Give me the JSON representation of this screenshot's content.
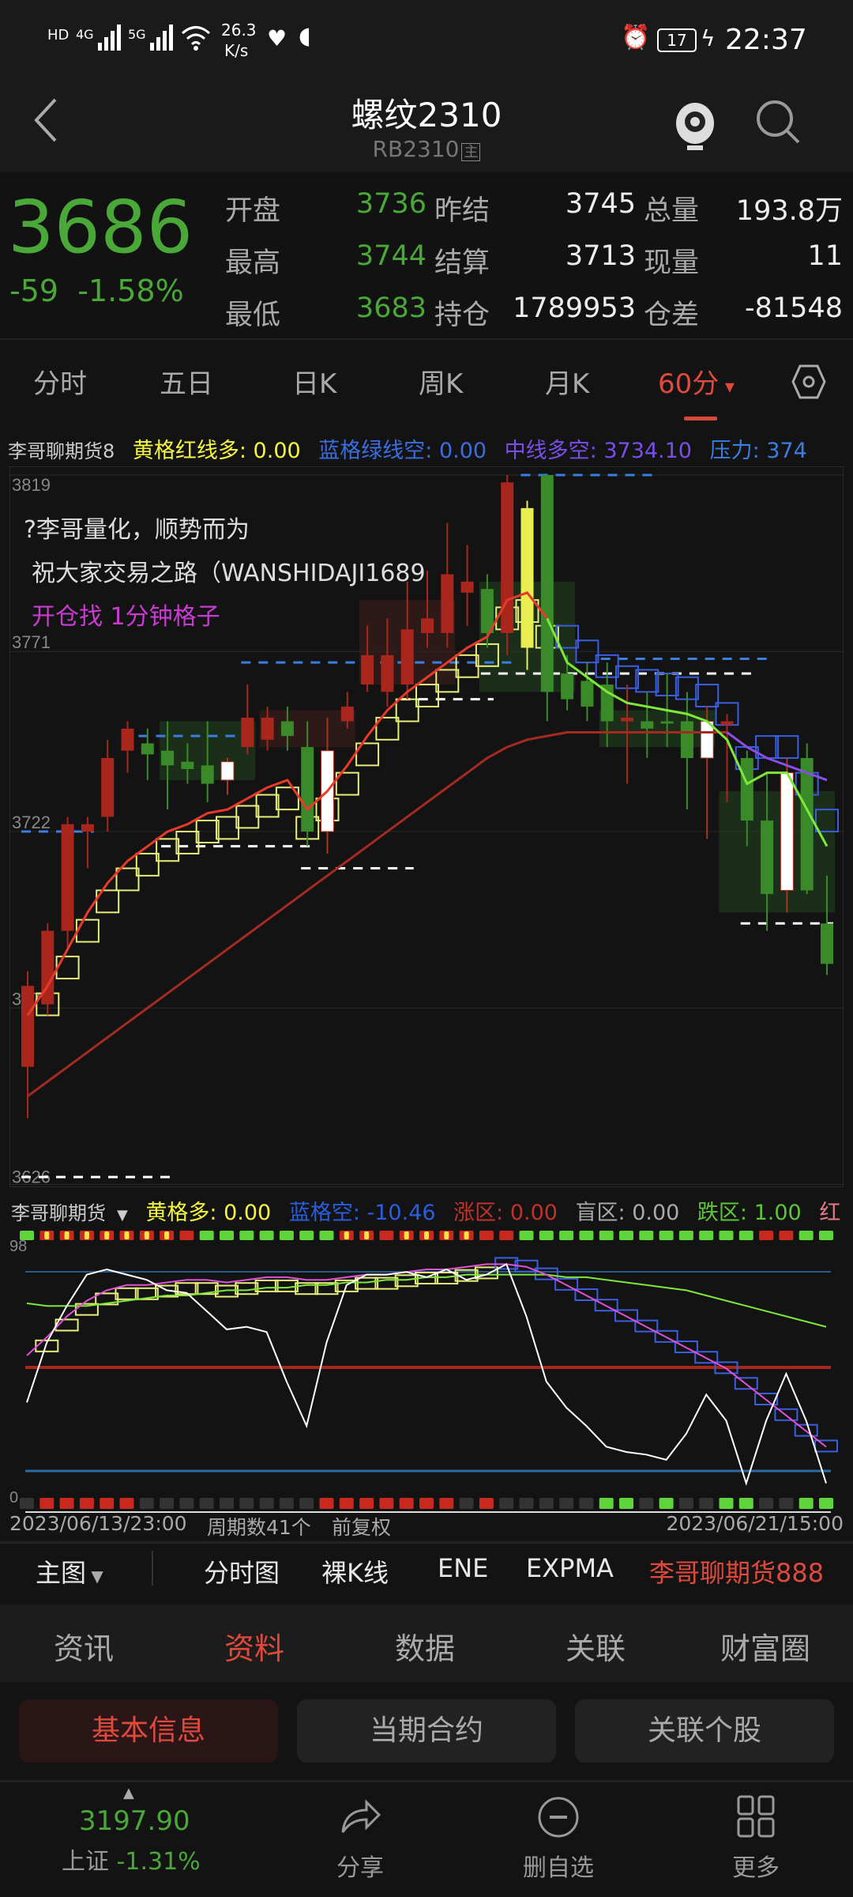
{
  "status_bar": {
    "net_speed": "26.3",
    "net_unit": "K/s",
    "battery": "17",
    "time": "22:37",
    "sim1": "4G",
    "sim2": "5G"
  },
  "header": {
    "title": "螺纹2310",
    "code": "RB2310",
    "main_badge": "主"
  },
  "quote": {
    "price": "3686",
    "change": "-59",
    "change_pct": "-1.58%",
    "rows": [
      [
        {
          "l": "开盘",
          "v": "3736",
          "c": "#4aa838"
        },
        {
          "l": "昨结",
          "v": "3745",
          "c": "#eee"
        },
        {
          "l": "总量",
          "v": "193.8万",
          "c": "#eee"
        }
      ],
      [
        {
          "l": "最高",
          "v": "3744",
          "c": "#4aa838"
        },
        {
          "l": "结算",
          "v": "3713",
          "c": "#eee"
        },
        {
          "l": "现量",
          "v": "11",
          "c": "#eee"
        }
      ],
      [
        {
          "l": "最低",
          "v": "3683",
          "c": "#4aa838"
        },
        {
          "l": "持仓",
          "v": "1789953",
          "c": "#eee"
        },
        {
          "l": "仓差",
          "v": "-81548",
          "c": "#eee"
        }
      ]
    ]
  },
  "period_tabs": [
    "分时",
    "五日",
    "日K",
    "周K",
    "月K",
    "60分"
  ],
  "active_period": "60分",
  "main_legend": {
    "name": "李哥聊期货8",
    "yellow": "黄格红线多: 0.00",
    "blue": "蓝格绿线空: 0.00",
    "mid": "中线多空: 3734.10",
    "press": "压力: 374"
  },
  "main_notes": [
    "?李哥量化，顺势而为",
    "祝大家交易之路（WANSHIDAJI1689",
    "开仓找 1分钟格子"
  ],
  "sub_legend": {
    "name": "李哥聊期货",
    "yellow": "黄格多: 0.00",
    "blue": "蓝格空: -10.46",
    "up": "涨区: 0.00",
    "blind": "盲区: 0.00",
    "down": "跌区: 1.00",
    "red": "红"
  },
  "footer_info": {
    "start": "2023/06/13/23:00",
    "count": "周期数41个",
    "adj": "前复权",
    "end": "2023/06/21/15:00"
  },
  "indicator_menu": {
    "main": "主图",
    "items": [
      "分时图",
      "裸K线",
      "ENE",
      "EXPMA"
    ],
    "active": "李哥聊期货888"
  },
  "info_tabs": [
    "资讯",
    "资料",
    "数据",
    "关联",
    "财富圈"
  ],
  "info_active": "资料",
  "buttons": [
    "基本信息",
    "当期合约",
    "关联个股"
  ],
  "bottom": {
    "index_value": "3197.90",
    "index_name": "上证",
    "index_pct": "-1.31%",
    "share": "分享",
    "remove": "删自选",
    "more": "更多"
  },
  "colors": {
    "up": "#c0392b",
    "down": "#4aa838",
    "accent": "#e04a3c"
  },
  "chart_data": {
    "type": "candlestick",
    "y_ticks": [
      "3819",
      "3771",
      "3722",
      "3674",
      "3626"
    ],
    "ylim": [
      3626,
      3819
    ],
    "candles": [
      [
        3658,
        3684,
        3644,
        3680,
        "red"
      ],
      [
        3675,
        3697,
        3672,
        3695,
        "red"
      ],
      [
        3695,
        3726,
        3690,
        3724,
        "red"
      ],
      [
        3722,
        3726,
        3712,
        3724,
        "red"
      ],
      [
        3726,
        3747,
        3722,
        3742,
        "red"
      ],
      [
        3744,
        3752,
        3738,
        3750,
        "red"
      ],
      [
        3746,
        3750,
        3736,
        3743,
        "green"
      ],
      [
        3744,
        3752,
        3728,
        3740,
        "green"
      ],
      [
        3741,
        3746,
        3735,
        3739,
        "green"
      ],
      [
        3740,
        3752,
        3730,
        3735,
        "green"
      ],
      [
        3736,
        3742,
        3732,
        3741,
        "white"
      ],
      [
        3745,
        3762,
        3743,
        3753,
        "red"
      ],
      [
        3747,
        3756,
        3744,
        3753,
        "red"
      ],
      [
        3752,
        3756,
        3744,
        3748,
        "green"
      ],
      [
        3745,
        3752,
        3718,
        3722,
        "green"
      ],
      [
        3722,
        3753,
        3716,
        3744,
        "white"
      ],
      [
        3752,
        3760,
        3750,
        3756,
        "red"
      ],
      [
        3762,
        3778,
        3760,
        3770,
        "red"
      ],
      [
        3760,
        3780,
        3756,
        3770,
        "red"
      ],
      [
        3762,
        3790,
        3758,
        3777,
        "red"
      ],
      [
        3776,
        3793,
        3772,
        3780,
        "red"
      ],
      [
        3776,
        3806,
        3772,
        3792,
        "red"
      ],
      [
        3787,
        3800,
        3778,
        3790,
        "red"
      ],
      [
        3788,
        3792,
        3772,
        3776,
        "green"
      ],
      [
        3776,
        3819,
        3770,
        3817,
        "red"
      ],
      [
        3810,
        3812,
        3766,
        3772,
        "yellow"
      ],
      [
        3819,
        3819,
        3752,
        3760,
        "green"
      ],
      [
        3765,
        3770,
        3755,
        3758,
        "green"
      ],
      [
        3763,
        3768,
        3752,
        3756,
        "green"
      ],
      [
        3762,
        3768,
        3745,
        3752,
        "green"
      ],
      [
        3753,
        3762,
        3735,
        3752,
        "red"
      ],
      [
        3752,
        3760,
        3742,
        3750,
        "green"
      ],
      [
        3752,
        3765,
        3745,
        3752,
        "green"
      ],
      [
        3752,
        3760,
        3728,
        3742,
        "green"
      ],
      [
        3752,
        3756,
        3720,
        3742,
        "white"
      ],
      [
        3752,
        3754,
        3730,
        3751,
        "red"
      ],
      [
        3742,
        3744,
        3718,
        3725,
        "green"
      ],
      [
        3725,
        3738,
        3695,
        3705,
        "green"
      ],
      [
        3738,
        3742,
        3700,
        3706,
        "white"
      ],
      [
        3742,
        3746,
        3705,
        3706,
        "green"
      ],
      [
        3697,
        3710,
        3683,
        3686,
        "green"
      ]
    ],
    "fast_line": [
      3672,
      3680,
      3690,
      3700,
      3708,
      3714,
      3718,
      3722,
      3724,
      3727,
      3728,
      3731,
      3734,
      3736,
      3728,
      3733,
      3740,
      3748,
      3755,
      3760,
      3764,
      3768,
      3772,
      3775,
      3785,
      3787,
      3780,
      3768,
      3764,
      3760,
      3757,
      3756,
      3755,
      3754,
      3752,
      3747,
      3735,
      3738,
      3738,
      3728,
      3718
    ],
    "slow_line": [
      3650,
      3654,
      3658,
      3662,
      3666,
      3670,
      3674,
      3678,
      3682,
      3686,
      3690,
      3694,
      3698,
      3702,
      3706,
      3710,
      3714,
      3718,
      3722,
      3726,
      3730,
      3734,
      3738,
      3742,
      3745,
      3747,
      3748,
      3749,
      3749,
      3749,
      3749,
      3749,
      3749,
      3749,
      3749,
      3749,
      3745,
      3742,
      3740,
      3738,
      3736
    ],
    "sub_ylim": [
      0,
      98
    ],
    "sub_white": [
      37,
      60,
      74,
      86,
      88,
      86,
      84,
      80,
      79,
      72,
      65,
      66,
      64,
      45,
      28,
      60,
      82,
      86,
      86,
      87,
      85,
      88,
      84,
      86,
      90,
      70,
      45,
      35,
      28,
      20,
      18,
      17,
      15,
      25,
      40,
      30,
      6,
      30,
      48,
      30,
      6
    ],
    "sub_pink": [
      55,
      62,
      70,
      76,
      80,
      82,
      82,
      83,
      84,
      84,
      83,
      84,
      85,
      85,
      84,
      84,
      85,
      86,
      86,
      87,
      88,
      88,
      89,
      90,
      90,
      89,
      86,
      82,
      78,
      74,
      70,
      66,
      62,
      58,
      54,
      50,
      44,
      38,
      32,
      26,
      20
    ],
    "sub_green": [
      75,
      74,
      74,
      74,
      75,
      76,
      77,
      78,
      78,
      79,
      80,
      80,
      81,
      81,
      82,
      82,
      83,
      83,
      84,
      84,
      85,
      85,
      86,
      86,
      86,
      86,
      86,
      85,
      85,
      84,
      83,
      82,
      81,
      80,
      78,
      76,
      74,
      72,
      70,
      68,
      66
    ],
    "top_dots": [
      "g",
      "ry",
      "ry",
      "ry",
      "ry",
      "ry",
      "ry",
      "ry",
      "r",
      "g",
      "g",
      "g",
      "g",
      "g",
      "g",
      "g",
      "ry",
      "ry",
      "r",
      "ry",
      "ry",
      "ry",
      "ry",
      "r",
      "r",
      "g",
      "g",
      "g",
      "g",
      "g",
      "g",
      "g",
      "g",
      "g",
      "g",
      "g",
      "g",
      "r",
      "r",
      "g",
      "g"
    ],
    "bottom_dots": [
      "d",
      "r",
      "r",
      "r",
      "r",
      "r",
      "d",
      "d",
      "d",
      "d",
      "d",
      "d",
      "d",
      "d",
      "d",
      "r",
      "r",
      "r",
      "r",
      "r",
      "r",
      "r",
      "d",
      "r",
      "d",
      "d",
      "d",
      "d",
      "d",
      "g",
      "g",
      "d",
      "g",
      "d",
      "d",
      "g",
      "g",
      "d",
      "d",
      "g",
      "g"
    ]
  }
}
